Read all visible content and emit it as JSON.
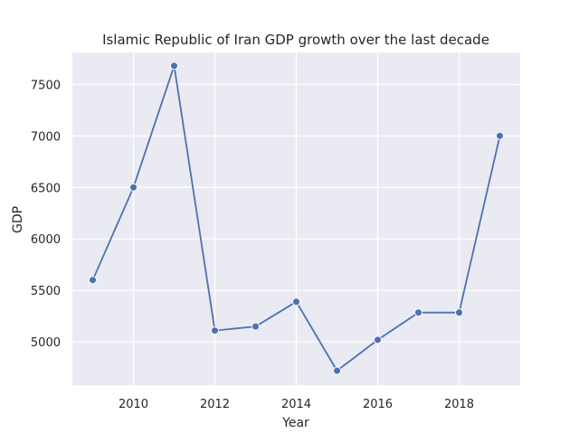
{
  "chart_data": {
    "type": "line",
    "title": "Islamic Republic of Iran GDP growth over the last decade",
    "xlabel": "Year",
    "ylabel": "GDP",
    "x": [
      2009,
      2010,
      2011,
      2012,
      2013,
      2014,
      2015,
      2016,
      2017,
      2018,
      2019
    ],
    "series": [
      {
        "values": [
          5600,
          6500,
          7680,
          5110,
          5150,
          5390,
          4720,
          5020,
          5285,
          5285,
          7000
        ],
        "color": "#4c72b0"
      }
    ],
    "xlim": [
      2008.5,
      2019.5
    ],
    "ylim": [
      4580,
      7810
    ],
    "xticks": [
      2010,
      2012,
      2014,
      2016,
      2018
    ],
    "yticks": [
      5000,
      5500,
      6000,
      6500,
      7000,
      7500
    ],
    "grid": true,
    "background": "#eaeaf2",
    "grid_color": "#ffffff"
  }
}
